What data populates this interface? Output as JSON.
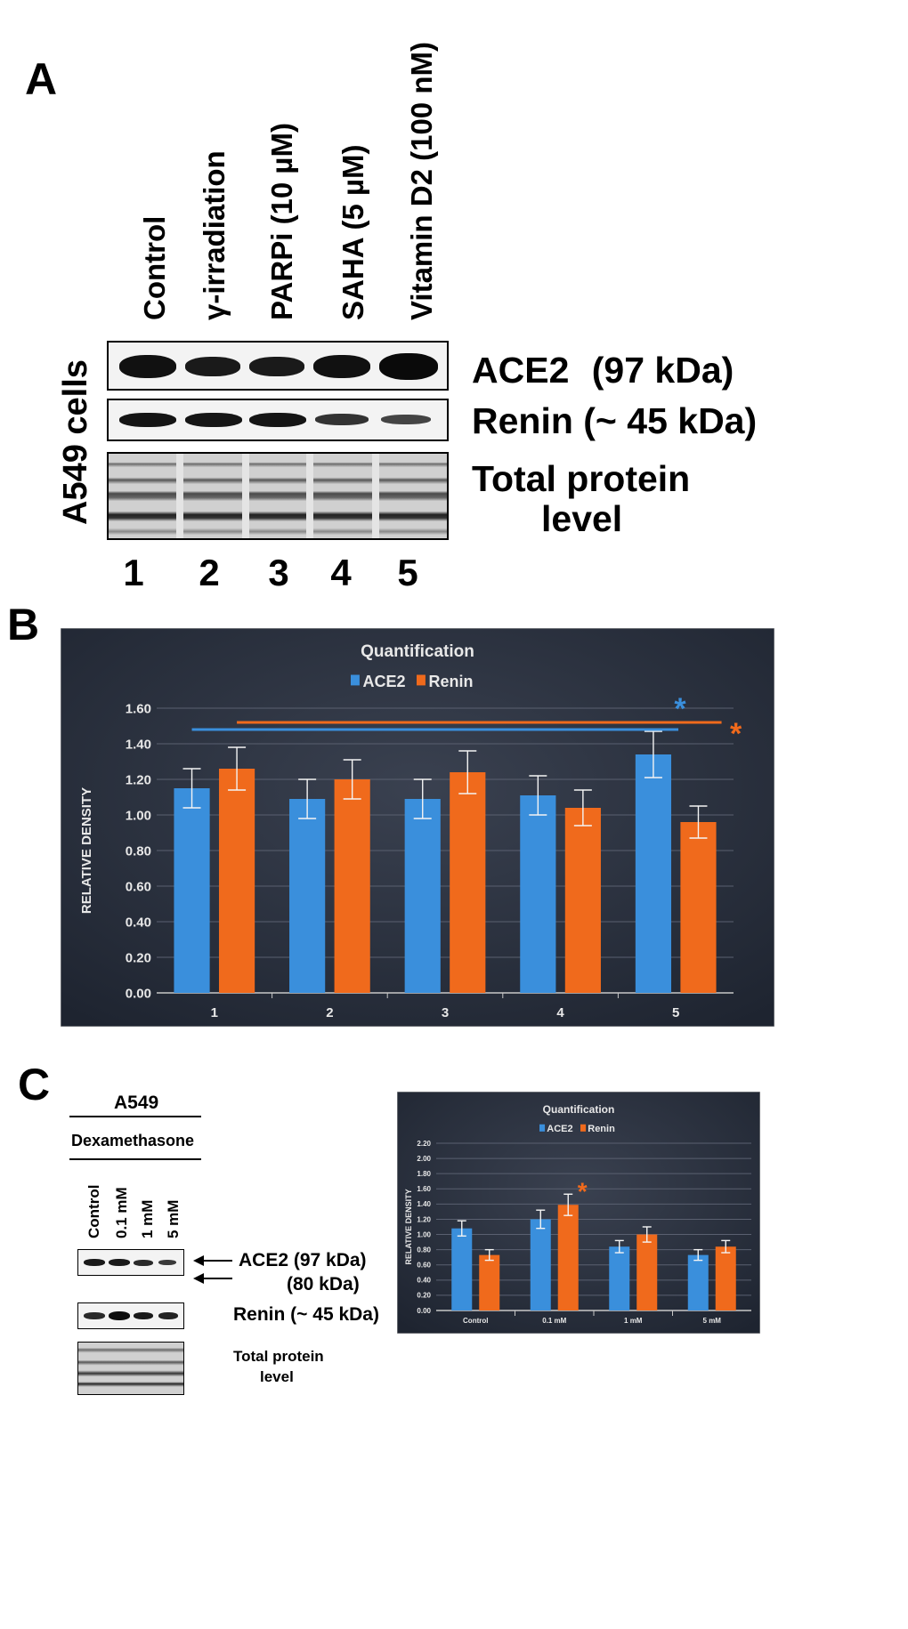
{
  "panelA": {
    "letter": "A",
    "lanes": [
      "Control",
      "γ-irradiation",
      "PARPi (10 µM)",
      "SAHA (5 µM)",
      "Vitamin D2 (100 nM)"
    ],
    "side_label": "A549 cells",
    "blot_labels": {
      "ace2": "ACE2",
      "ace2_kda": "(97 kDa)",
      "renin": "Renin (~ 45 kDa)",
      "total_1": "Total protein",
      "total_2": "level"
    },
    "lane_numbers": [
      "1",
      "2",
      "3",
      "4",
      "5"
    ]
  },
  "panelB": {
    "letter": "B"
  },
  "panelC": {
    "letter": "C",
    "cell_line": "A549",
    "treatment": "Dexamethasone",
    "lanes": [
      "Control",
      "0.1 mM",
      "1 mM",
      "5 mM"
    ],
    "labels": {
      "ace2": "ACE2 (97 kDa)",
      "ace2_80": "(80 kDa)",
      "renin": "Renin (~ 45 kDa)",
      "total_1": "Total protein",
      "total_2": "level"
    }
  },
  "chart_data": [
    {
      "type": "bar",
      "title": "Quantification",
      "ylabel": "RELATIVE DENSITY",
      "categories": [
        "1",
        "2",
        "3",
        "4",
        "5"
      ],
      "series": [
        {
          "name": "ACE2",
          "values": [
            1.15,
            1.09,
            1.09,
            1.11,
            1.34
          ],
          "errors": [
            0.11,
            0.11,
            0.11,
            0.11,
            0.13
          ],
          "color": "#3a8fdc"
        },
        {
          "name": "Renin",
          "values": [
            1.26,
            1.2,
            1.24,
            1.04,
            0.96
          ],
          "errors": [
            0.12,
            0.11,
            0.12,
            0.1,
            0.09
          ],
          "color": "#f06a1c"
        }
      ],
      "ylim": [
        0,
        1.6
      ],
      "yticks": [
        "0.00",
        "0.20",
        "0.40",
        "0.60",
        "0.80",
        "1.00",
        "1.20",
        "1.40",
        "1.60"
      ],
      "significance": [
        {
          "series": "ACE2",
          "from": "1",
          "to": "5",
          "symbol": "*",
          "level": 1.48
        },
        {
          "series": "Renin",
          "from": "1",
          "to": "5",
          "symbol": "*",
          "level": 1.52
        }
      ],
      "grid": true,
      "legend": "top-center",
      "background": "#1e2430"
    },
    {
      "type": "bar",
      "title": "Quantification",
      "ylabel": "RELATIVE DENSITY",
      "categories": [
        "Control",
        "0.1 mM",
        "1 mM",
        "5 mM"
      ],
      "series": [
        {
          "name": "ACE2",
          "values": [
            1.08,
            1.2,
            0.84,
            0.73
          ],
          "errors": [
            0.1,
            0.12,
            0.08,
            0.07
          ],
          "color": "#3a8fdc"
        },
        {
          "name": "Renin",
          "values": [
            0.73,
            1.39,
            1.0,
            0.84
          ],
          "errors": [
            0.07,
            0.14,
            0.1,
            0.08
          ],
          "color": "#f06a1c"
        }
      ],
      "ylim": [
        0,
        2.2
      ],
      "yticks": [
        "0.00",
        "0.20",
        "0.40",
        "0.60",
        "0.80",
        "1.00",
        "1.20",
        "1.40",
        "1.60",
        "1.80",
        "2.00",
        "2.20"
      ],
      "significance": [
        {
          "series": "Renin",
          "category": "0.1 mM",
          "symbol": "*"
        }
      ],
      "grid": true,
      "legend": "top-center",
      "background": "#1e2430"
    }
  ]
}
